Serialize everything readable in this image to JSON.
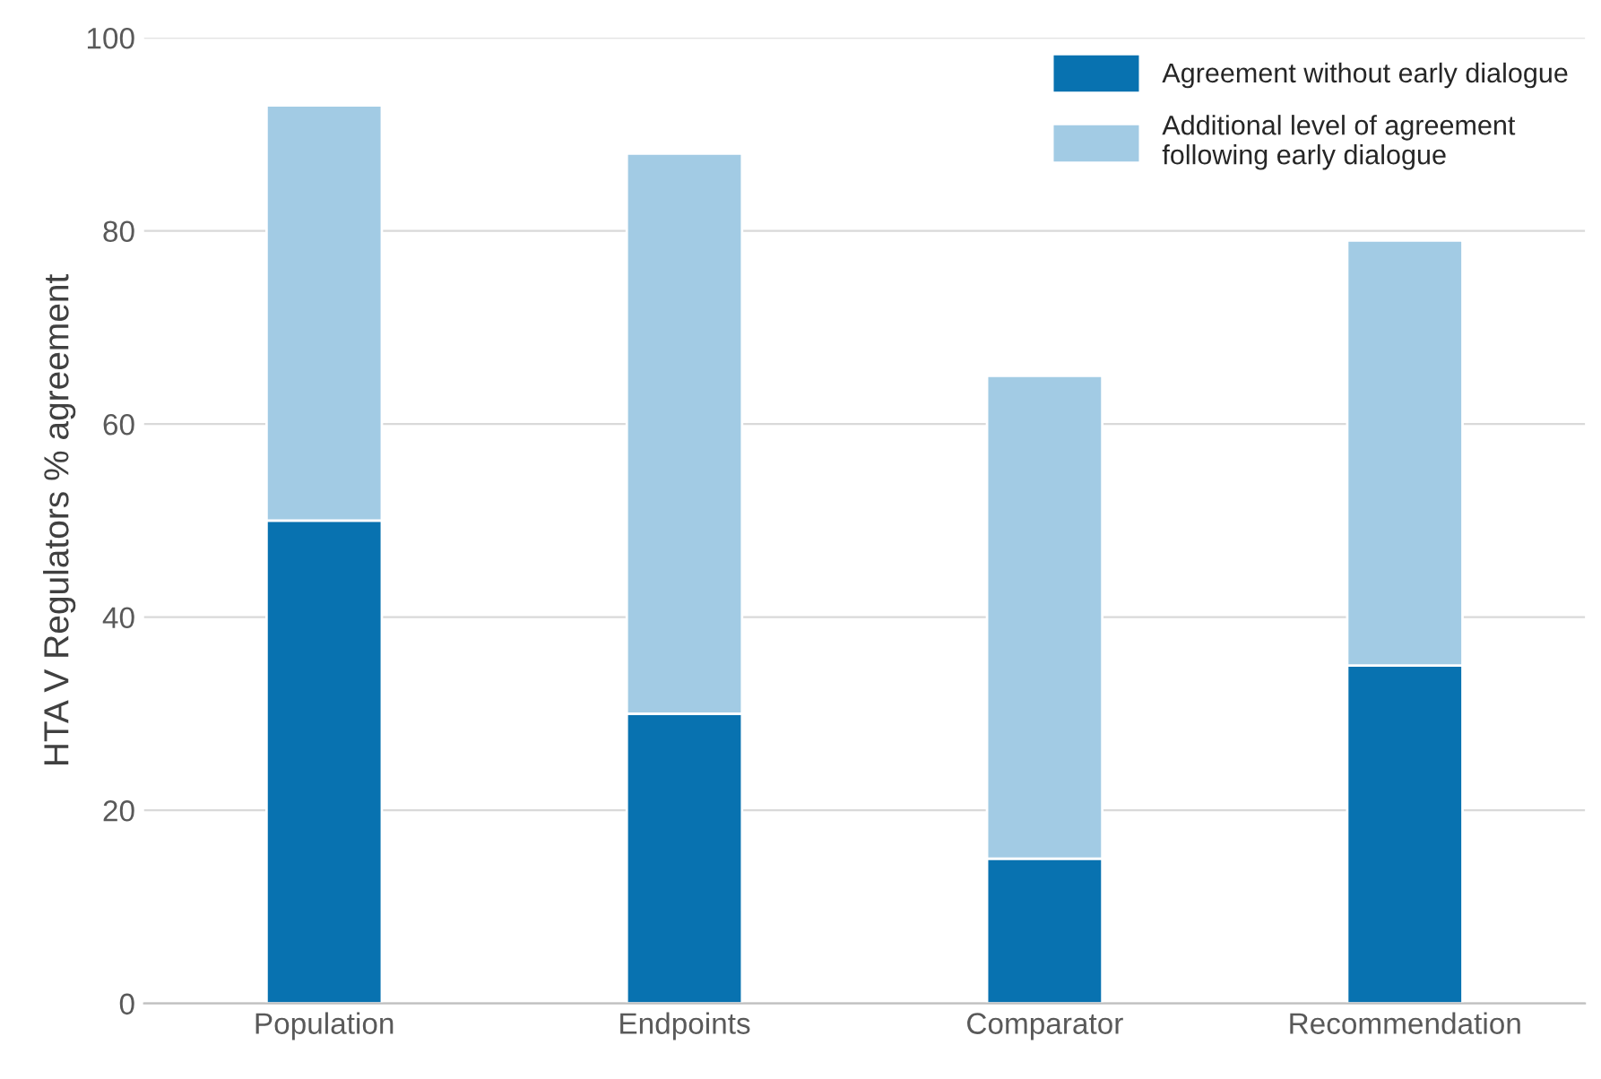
{
  "chart_data": {
    "type": "bar",
    "stacked": true,
    "ylabel": "HTA V Regulators % agreement",
    "categories": [
      "Population",
      "Endpoints",
      "Comparator",
      "Recommendation"
    ],
    "series": [
      {
        "name": "Agreement without early dialogue",
        "color": "#0872b0",
        "values": [
          50,
          30,
          15,
          35
        ]
      },
      {
        "name": "Additional level of agreement\nfollowing early dialogue",
        "color": "#a2cbe4",
        "values": [
          43,
          58,
          50,
          44
        ]
      }
    ],
    "ylim": [
      0,
      100
    ],
    "yticks": [
      0,
      20,
      40,
      60,
      80,
      100
    ],
    "grid": "y",
    "legend": "top right"
  }
}
